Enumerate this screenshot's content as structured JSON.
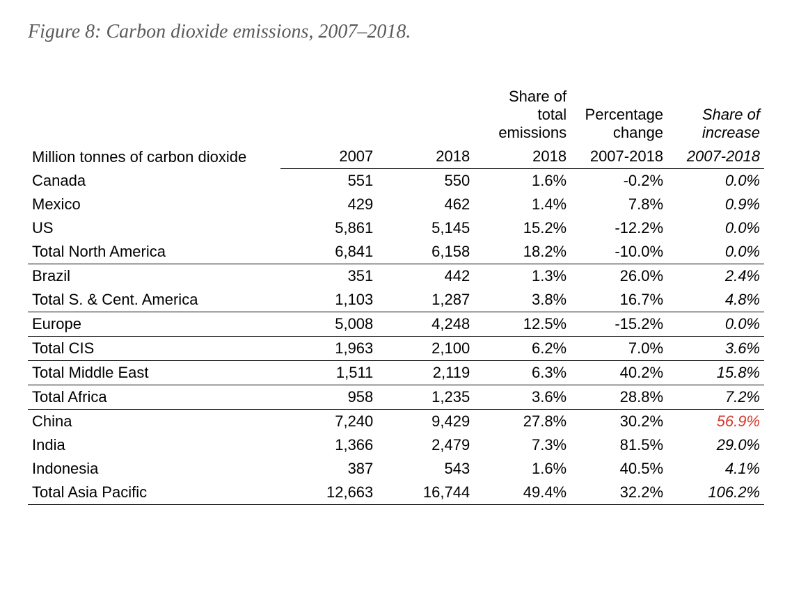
{
  "title": "Figure 8: Carbon dioxide emissions, 2007–2018.",
  "table": {
    "caption": "Million tonnes of carbon dioxide",
    "headers": {
      "share_total": "Share of total emissions",
      "pct_change": "Percentage change",
      "share_increase": "Share of increase"
    },
    "year_headers": {
      "y2007": "2007",
      "y2018": "2018",
      "share_year": "2018",
      "pct_range": "2007-2018",
      "share_range": "2007-2018"
    },
    "rows": [
      {
        "country": "Canada",
        "y2007": "551",
        "y2018": "550",
        "share": "1.6%",
        "pct": "-0.2%",
        "inc": "0.0%",
        "rule": false,
        "highlight": false
      },
      {
        "country": "Mexico",
        "y2007": "429",
        "y2018": "462",
        "share": "1.4%",
        "pct": "7.8%",
        "inc": "0.9%",
        "rule": false,
        "highlight": false
      },
      {
        "country": "US",
        "y2007": "5,861",
        "y2018": "5,145",
        "share": "15.2%",
        "pct": "-12.2%",
        "inc": "0.0%",
        "rule": false,
        "highlight": false
      },
      {
        "country": "Total North America",
        "y2007": "6,841",
        "y2018": "6,158",
        "share": "18.2%",
        "pct": "-10.0%",
        "inc": "0.0%",
        "rule": true,
        "highlight": false
      },
      {
        "country": "Brazil",
        "y2007": "351",
        "y2018": "442",
        "share": "1.3%",
        "pct": "26.0%",
        "inc": "2.4%",
        "rule": false,
        "highlight": false
      },
      {
        "country": "Total S. & Cent. America",
        "y2007": "1,103",
        "y2018": "1,287",
        "share": "3.8%",
        "pct": "16.7%",
        "inc": "4.8%",
        "rule": true,
        "highlight": false
      },
      {
        "country": "Europe",
        "y2007": "5,008",
        "y2018": "4,248",
        "share": "12.5%",
        "pct": "-15.2%",
        "inc": "0.0%",
        "rule": true,
        "highlight": false
      },
      {
        "country": "Total CIS",
        "y2007": "1,963",
        "y2018": "2,100",
        "share": "6.2%",
        "pct": "7.0%",
        "inc": "3.6%",
        "rule": true,
        "highlight": false
      },
      {
        "country": "Total Middle East",
        "y2007": "1,511",
        "y2018": "2,119",
        "share": "6.3%",
        "pct": "40.2%",
        "inc": "15.8%",
        "rule": true,
        "highlight": false
      },
      {
        "country": "Total Africa",
        "y2007": "958",
        "y2018": "1,235",
        "share": "3.6%",
        "pct": "28.8%",
        "inc": "7.2%",
        "rule": true,
        "highlight": false
      },
      {
        "country": "China",
        "y2007": "7,240",
        "y2018": "9,429",
        "share": "27.8%",
        "pct": "30.2%",
        "inc": "56.9%",
        "rule": false,
        "highlight": true
      },
      {
        "country": "India",
        "y2007": "1,366",
        "y2018": "2,479",
        "share": "7.3%",
        "pct": "81.5%",
        "inc": "29.0%",
        "rule": false,
        "highlight": false
      },
      {
        "country": "Indonesia",
        "y2007": "387",
        "y2018": "543",
        "share": "1.6%",
        "pct": "40.5%",
        "inc": "4.1%",
        "rule": false,
        "highlight": false
      },
      {
        "country": "Total Asia Pacific",
        "y2007": "12,663",
        "y2018": "16,744",
        "share": "49.4%",
        "pct": "32.2%",
        "inc": "106.2%",
        "rule": true,
        "highlight": false
      }
    ],
    "styling": {
      "font_family": "Arial",
      "font_size_pt": 16,
      "title_font_family": "Georgia",
      "title_font_size_pt": 21,
      "title_color": "#5a5a5a",
      "rule_color": "#000000",
      "highlight_color": "#d8392b",
      "background_color": "#ffffff",
      "text_color": "#000000",
      "last_column_italic": true,
      "share_increase_header_italic": true,
      "share_range_header_italic": true
    }
  }
}
